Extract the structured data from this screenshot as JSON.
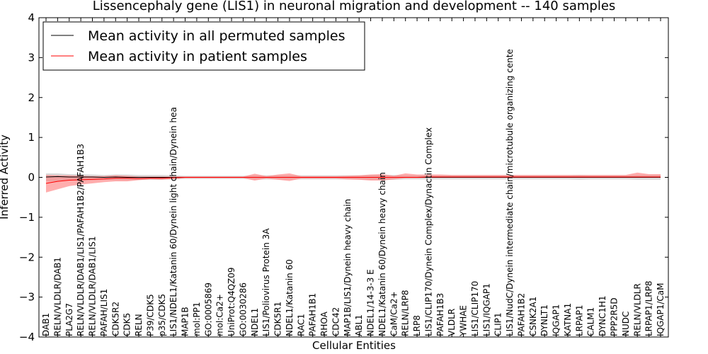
{
  "chart_data": {
    "type": "line",
    "title": "Lissencephaly gene (LIS1) in neuronal migration and development -- 140 samples",
    "xlabel": "Cellular Entities",
    "ylabel": "Inferred Activity",
    "ylim": [
      -4,
      4
    ],
    "yticks": [
      -4,
      -3,
      -2,
      -1,
      0,
      1,
      2,
      3,
      4
    ],
    "grid": false,
    "legend_position": "top-left",
    "categories": [
      "DAB1",
      "RELN/VLDLR/DAB1",
      "PLA2G7",
      "RELN/VLDLR/DAB1/LIS1/PAFAH1B2/PAFAH1B3",
      "RELN/VLDLR/DAB1/LIS1",
      "PAFAH/LIS1",
      "CDK5R2",
      "CDK5",
      "RELN",
      "P39/CDK5",
      "p35/CDK5",
      "LIS1/NDEL1/Katanin 60/Dynein light chain/Dynein hea",
      "MAP1B",
      "mol:PP1",
      "GO:0005869",
      "mol:Ca2+",
      "UniProt:Q4QZ09",
      "GO:0030286",
      "NDEL1",
      "LIS1/Poliovirus Protein 3A",
      "CDK5R1",
      "NDEL1/Katanin 60",
      "RAC1",
      "PAFAH1B1",
      "RHOA",
      "CDC42",
      "MAP1B/LIS1/Dynein heavy chain",
      "ABL1",
      "NDEL1/14-3-3 E",
      "NDEL1/Katanin 60/Dynein heavy chain",
      "CaM/Ca2+",
      "RELN/LRP8",
      "LRP8",
      "LIS1/CLIP170/Dynein Complex/Dynactin Complex",
      "PAFAH1B3",
      "VLDLR",
      "YWHAE",
      "LIS1/CLIP170",
      "LIS1/IQGAP1",
      "CLIP1",
      "LIS1/NudC/Dynein intermediate chain/microtubule organizing cente",
      "PAFAH1B2",
      "CSNK2A1",
      "DYNLT1",
      "IQGAP1",
      "KATNA1",
      "LRPAP1",
      "CALM1",
      "DYNC1H1",
      "PPP2R5D",
      "NUDC",
      "RELN/VLDLR",
      "LRPAP1/LRP8",
      "IQGAP1/CaM"
    ],
    "series": [
      {
        "name": "Mean activity in all permuted samples",
        "color": "#000000",
        "band_color": "#bbbbbb",
        "values": [
          0.01,
          0.02,
          0.01,
          0.01,
          0.01,
          0.0,
          0.01,
          0.0,
          0.0,
          0.0,
          0.0,
          0.0,
          0.0,
          0.0,
          0.0,
          0.0,
          0.0,
          0.0,
          0.0,
          0.0,
          0.0,
          0.0,
          0.0,
          0.0,
          0.0,
          0.0,
          0.0,
          0.0,
          0.0,
          0.0,
          0.0,
          0.0,
          0.0,
          0.0,
          0.0,
          0.0,
          0.0,
          0.0,
          0.0,
          0.0,
          0.0,
          0.0,
          0.0,
          0.0,
          0.0,
          0.0,
          0.0,
          0.0,
          0.0,
          0.0,
          0.0,
          0.0,
          0.0,
          0.0
        ],
        "lower": [
          -0.1,
          -0.1,
          -0.08,
          -0.08,
          -0.07,
          -0.06,
          -0.07,
          -0.07,
          -0.06,
          -0.06,
          -0.06,
          -0.05,
          -0.04,
          -0.04,
          -0.04,
          -0.04,
          -0.04,
          -0.04,
          -0.05,
          -0.05,
          -0.05,
          -0.05,
          -0.05,
          -0.05,
          -0.05,
          -0.05,
          -0.05,
          -0.05,
          -0.06,
          -0.06,
          -0.06,
          -0.05,
          -0.05,
          -0.05,
          -0.05,
          -0.05,
          -0.05,
          -0.05,
          -0.05,
          -0.05,
          -0.05,
          -0.05,
          -0.05,
          -0.05,
          -0.05,
          -0.05,
          -0.06,
          -0.05,
          -0.05,
          -0.05,
          -0.05,
          -0.06,
          -0.06,
          -0.06
        ],
        "upper": [
          0.1,
          0.1,
          0.08,
          0.08,
          0.07,
          0.06,
          0.07,
          0.07,
          0.06,
          0.06,
          0.06,
          0.05,
          0.04,
          0.04,
          0.04,
          0.04,
          0.04,
          0.04,
          0.05,
          0.05,
          0.05,
          0.05,
          0.05,
          0.05,
          0.05,
          0.05,
          0.05,
          0.05,
          0.06,
          0.06,
          0.06,
          0.05,
          0.05,
          0.05,
          0.05,
          0.05,
          0.05,
          0.05,
          0.05,
          0.05,
          0.05,
          0.05,
          0.05,
          0.05,
          0.05,
          0.05,
          0.06,
          0.05,
          0.05,
          0.05,
          0.05,
          0.06,
          0.06,
          0.06
        ]
      },
      {
        "name": "Mean activity in patient samples",
        "color": "#ff0000",
        "band_color": "#ff7777",
        "values": [
          -0.15,
          -0.1,
          -0.07,
          -0.06,
          -0.05,
          -0.04,
          -0.02,
          -0.02,
          -0.03,
          -0.02,
          -0.02,
          -0.01,
          0.0,
          0.0,
          0.0,
          0.0,
          0.0,
          0.0,
          0.0,
          0.0,
          0.0,
          0.0,
          0.0,
          0.0,
          0.0,
          0.0,
          0.0,
          0.0,
          0.0,
          0.0,
          0.0,
          0.0,
          0.0,
          0.01,
          0.01,
          0.01,
          0.01,
          0.01,
          0.01,
          0.01,
          0.01,
          0.01,
          0.01,
          0.01,
          0.01,
          0.01,
          0.01,
          0.01,
          0.01,
          0.01,
          0.01,
          0.01,
          0.01,
          0.01
        ],
        "lower": [
          -0.38,
          -0.3,
          -0.22,
          -0.18,
          -0.15,
          -0.12,
          -0.1,
          -0.1,
          -0.07,
          -0.05,
          -0.06,
          -0.04,
          -0.02,
          -0.02,
          -0.02,
          -0.02,
          -0.02,
          -0.02,
          -0.08,
          -0.03,
          -0.06,
          -0.09,
          -0.03,
          -0.03,
          -0.03,
          -0.03,
          -0.05,
          -0.06,
          -0.08,
          -0.08,
          -0.05,
          -0.02,
          -0.02,
          -0.01,
          -0.01,
          -0.01,
          -0.01,
          -0.01,
          -0.01,
          -0.01,
          -0.01,
          -0.01,
          -0.01,
          -0.01,
          -0.01,
          -0.01,
          -0.01,
          -0.01,
          -0.01,
          -0.01,
          -0.01,
          -0.01,
          -0.01,
          -0.01
        ],
        "upper": [
          0.06,
          0.05,
          0.05,
          0.04,
          0.03,
          0.03,
          0.05,
          0.04,
          0.02,
          0.02,
          0.02,
          0.02,
          0.02,
          0.02,
          0.02,
          0.02,
          0.02,
          0.02,
          0.09,
          0.03,
          0.07,
          0.1,
          0.03,
          0.03,
          0.03,
          0.03,
          0.04,
          0.05,
          0.07,
          0.08,
          0.04,
          0.1,
          0.07,
          0.07,
          0.07,
          0.06,
          0.06,
          0.06,
          0.06,
          0.06,
          0.06,
          0.06,
          0.06,
          0.06,
          0.06,
          0.06,
          0.06,
          0.06,
          0.06,
          0.06,
          0.06,
          0.12,
          0.08,
          0.08
        ]
      }
    ]
  }
}
